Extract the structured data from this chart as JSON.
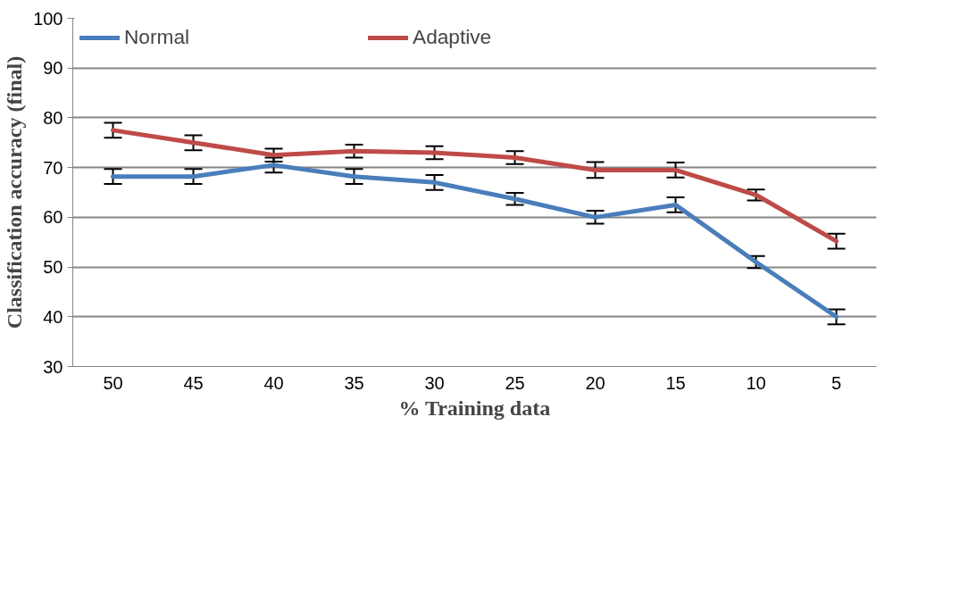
{
  "chart_data": {
    "type": "line",
    "xlabel": "% Training data",
    "ylabel": "Classification accuracy (final)",
    "categories": [
      "50",
      "45",
      "40",
      "35",
      "30",
      "25",
      "20",
      "15",
      "10",
      "5"
    ],
    "series": [
      {
        "name": "Normal",
        "color": "#4a7ebb",
        "values": [
          68.2,
          68.2,
          70.5,
          68.2,
          67,
          63.7,
          60,
          62.5,
          51,
          40
        ],
        "errors": [
          1.5,
          1.5,
          1.5,
          1.5,
          1.5,
          1.2,
          1.3,
          1.5,
          1.2,
          1.5
        ]
      },
      {
        "name": "Adaptive",
        "color": "#be4b48",
        "values": [
          77.5,
          75,
          72.5,
          73.3,
          73,
          72,
          69.5,
          69.5,
          64.5,
          55.2
        ],
        "errors": [
          1.5,
          1.5,
          1.3,
          1.3,
          1.3,
          1.3,
          1.6,
          1.5,
          1.1,
          1.5
        ]
      }
    ],
    "ylim": [
      30,
      100
    ],
    "yticks": [
      30,
      40,
      50,
      60,
      70,
      80,
      90,
      100
    ],
    "grid": "y",
    "legend": "top",
    "marker": "none",
    "line_style": "solid"
  }
}
